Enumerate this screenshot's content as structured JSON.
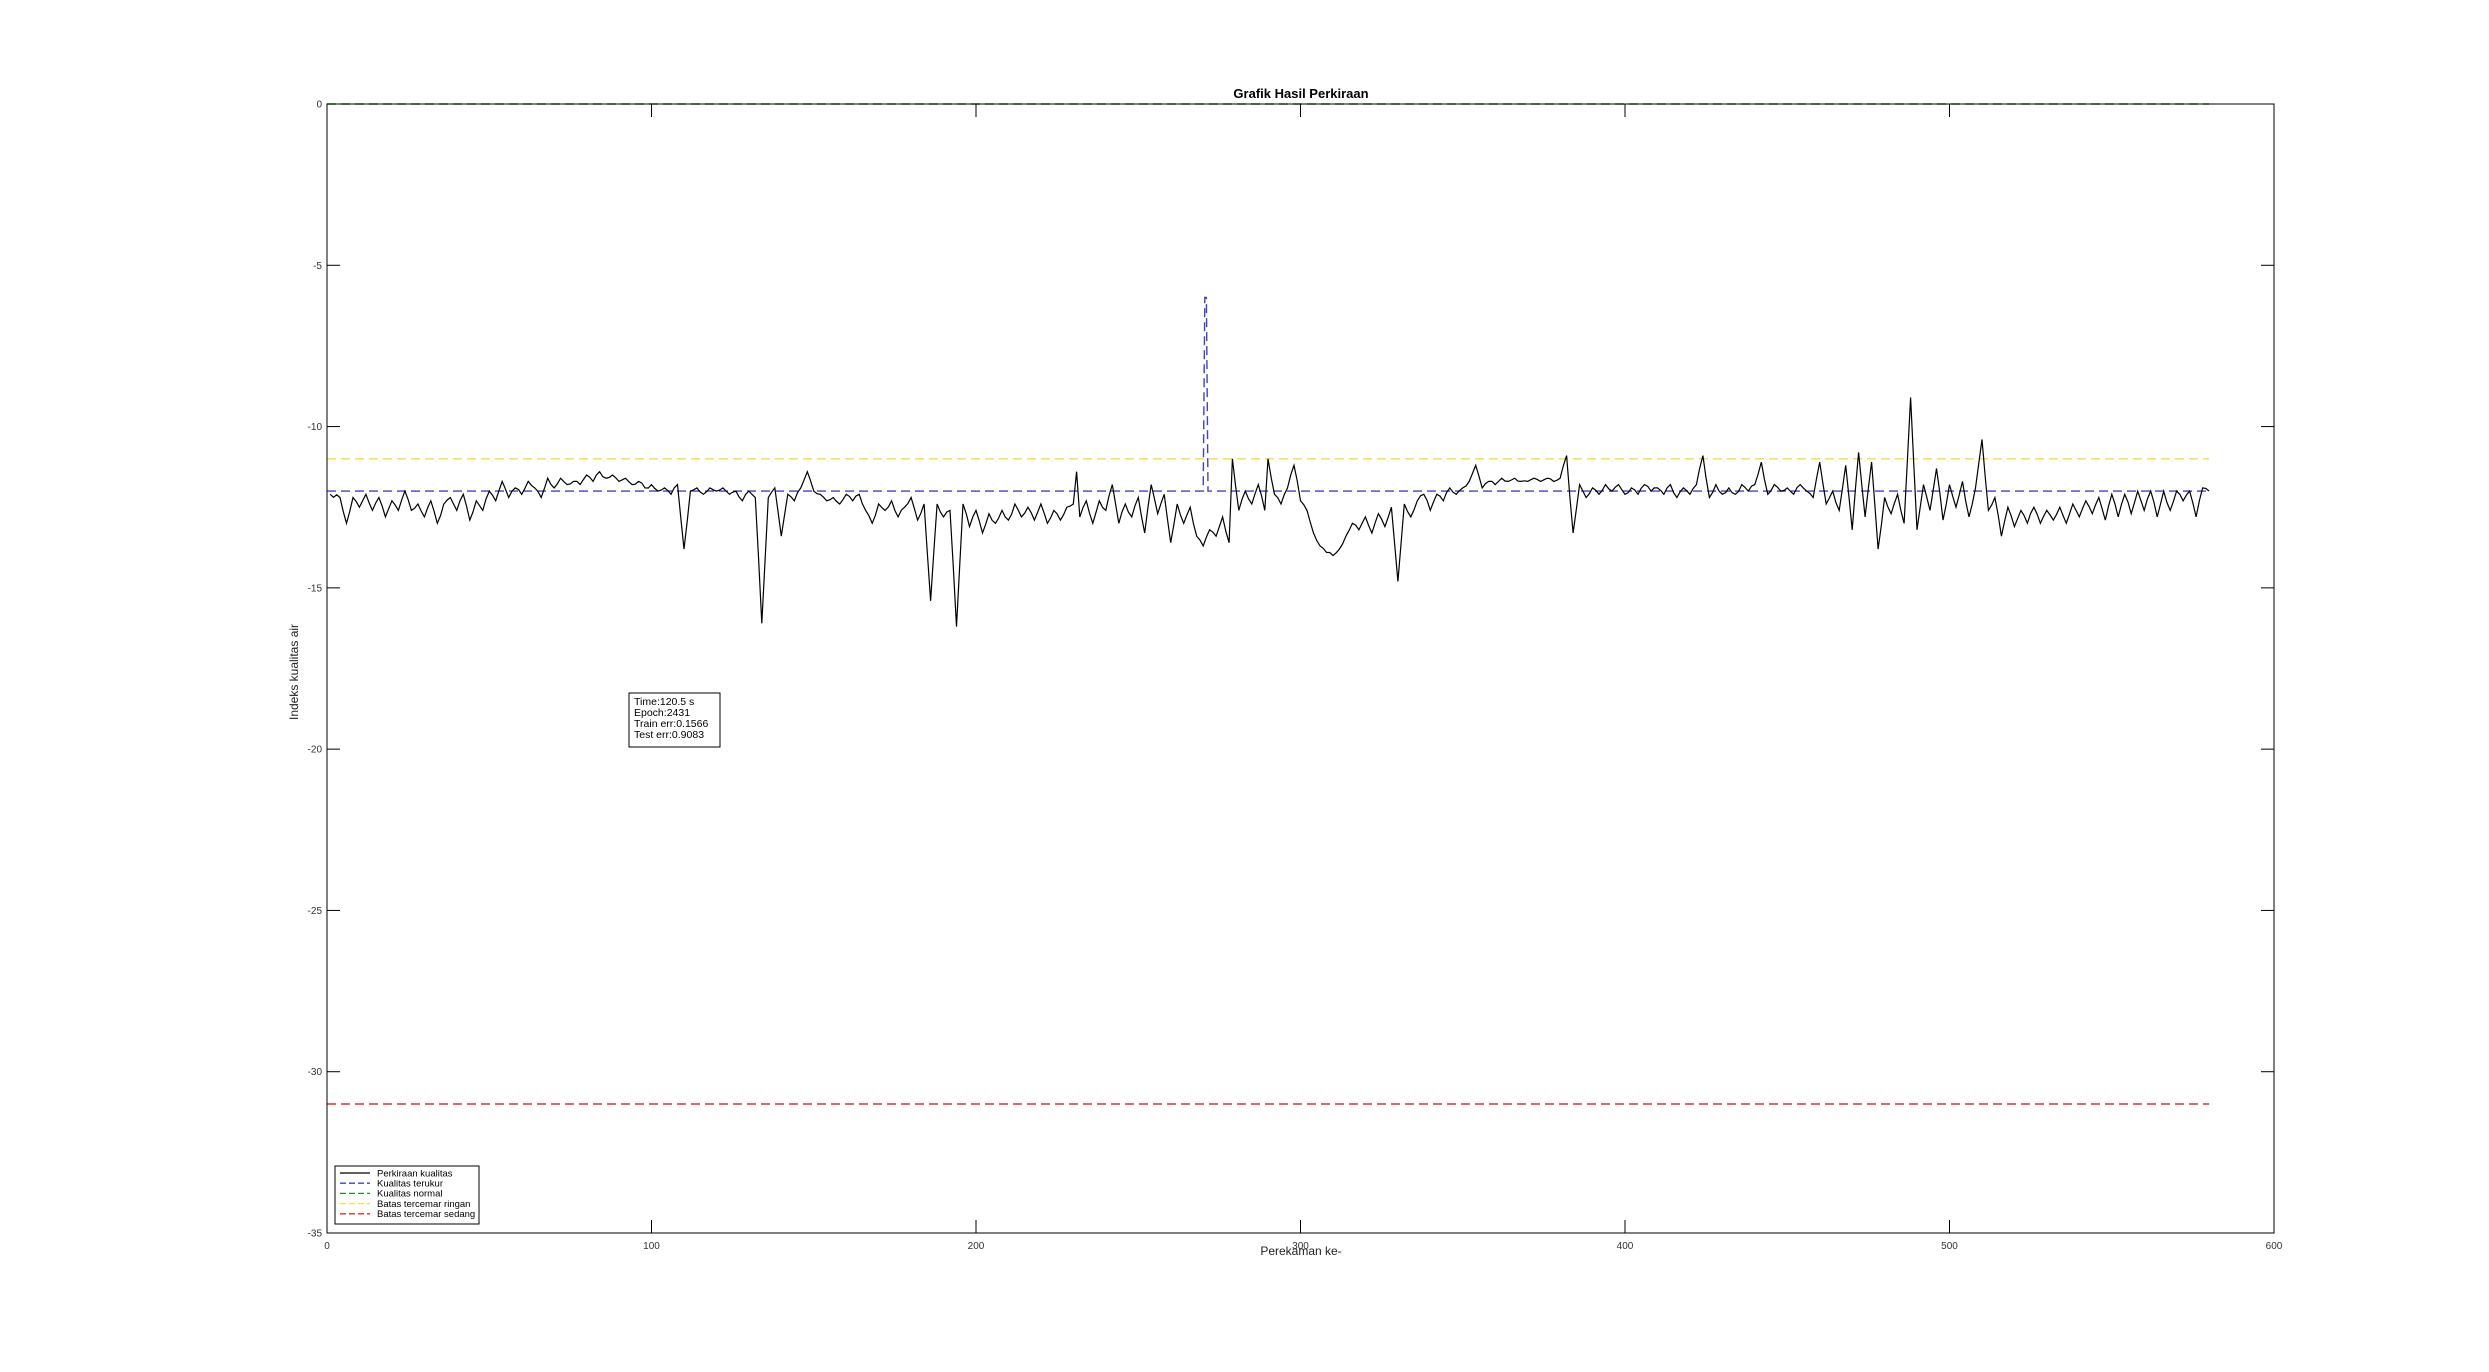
{
  "chart_data": {
    "type": "line",
    "title": "Grafik Hasil Perkiraan",
    "xlabel": "Perekaman ke-",
    "ylabel": "Indeks kualitas air",
    "xlim": [
      0,
      600
    ],
    "ylim": [
      -35,
      0
    ],
    "xticks": [
      0,
      100,
      200,
      300,
      400,
      500,
      600
    ],
    "yticks": [
      0,
      -5,
      -10,
      -15,
      -20,
      -25,
      -30,
      -35
    ],
    "grid": false,
    "legend_placement": "bottom-left",
    "annotation": [
      "Time:120.5  s",
      "Epoch:2431",
      "Train err:0.1566",
      "Test err:0.9083"
    ],
    "series": [
      {
        "name": "Perkiraan kualitas",
        "style": "solid",
        "color": "#000000",
        "anchors": [
          [
            1,
            -12.1
          ],
          [
            4,
            -12.2
          ],
          [
            6,
            -13.0
          ],
          [
            8,
            -12.2
          ],
          [
            10,
            -12.5
          ],
          [
            12,
            -12.1
          ],
          [
            14,
            -12.6
          ],
          [
            16,
            -12.2
          ],
          [
            18,
            -12.8
          ],
          [
            20,
            -12.3
          ],
          [
            22,
            -12.6
          ],
          [
            24,
            -12.0
          ],
          [
            26,
            -12.6
          ],
          [
            28,
            -12.4
          ],
          [
            30,
            -12.8
          ],
          [
            32,
            -12.3
          ],
          [
            34,
            -13.0
          ],
          [
            36,
            -12.4
          ],
          [
            38,
            -12.2
          ],
          [
            40,
            -12.6
          ],
          [
            42,
            -12.1
          ],
          [
            44,
            -12.9
          ],
          [
            46,
            -12.3
          ],
          [
            48,
            -12.6
          ],
          [
            50,
            -12.0
          ],
          [
            52,
            -12.3
          ],
          [
            54,
            -11.7
          ],
          [
            56,
            -12.2
          ],
          [
            58,
            -11.9
          ],
          [
            60,
            -12.1
          ],
          [
            62,
            -11.7
          ],
          [
            64,
            -11.9
          ],
          [
            66,
            -12.2
          ],
          [
            68,
            -11.6
          ],
          [
            70,
            -11.9
          ],
          [
            72,
            -11.6
          ],
          [
            74,
            -11.8
          ],
          [
            76,
            -11.7
          ],
          [
            78,
            -11.8
          ],
          [
            80,
            -11.5
          ],
          [
            82,
            -11.7
          ],
          [
            84,
            -11.4
          ],
          [
            86,
            -11.6
          ],
          [
            88,
            -11.5
          ],
          [
            90,
            -11.7
          ],
          [
            92,
            -11.6
          ],
          [
            94,
            -11.8
          ],
          [
            96,
            -11.7
          ],
          [
            98,
            -11.9
          ],
          [
            100,
            -11.8
          ],
          [
            102,
            -12.0
          ],
          [
            104,
            -11.9
          ],
          [
            106,
            -12.1
          ],
          [
            108,
            -11.8
          ],
          [
            110,
            -13.8
          ],
          [
            112,
            -12.0
          ],
          [
            114,
            -11.9
          ],
          [
            116,
            -12.1
          ],
          [
            118,
            -11.9
          ],
          [
            120,
            -12.0
          ],
          [
            122,
            -11.9
          ],
          [
            124,
            -12.1
          ],
          [
            126,
            -12.0
          ],
          [
            128,
            -12.3
          ],
          [
            130,
            -12.0
          ],
          [
            132,
            -12.2
          ],
          [
            134,
            -16.1
          ],
          [
            136,
            -12.2
          ],
          [
            138,
            -11.9
          ],
          [
            140,
            -13.4
          ],
          [
            142,
            -12.1
          ],
          [
            144,
            -12.3
          ],
          [
            146,
            -11.9
          ],
          [
            148,
            -11.4
          ],
          [
            150,
            -12.0
          ],
          [
            152,
            -12.1
          ],
          [
            154,
            -12.3
          ],
          [
            156,
            -12.2
          ],
          [
            158,
            -12.4
          ],
          [
            160,
            -12.1
          ],
          [
            162,
            -12.3
          ],
          [
            164,
            -12.1
          ],
          [
            166,
            -12.6
          ],
          [
            168,
            -13.0
          ],
          [
            170,
            -12.4
          ],
          [
            172,
            -12.6
          ],
          [
            174,
            -12.3
          ],
          [
            176,
            -12.8
          ],
          [
            178,
            -12.5
          ],
          [
            180,
            -12.2
          ],
          [
            182,
            -12.9
          ],
          [
            184,
            -12.4
          ],
          [
            186,
            -15.4
          ],
          [
            188,
            -12.4
          ],
          [
            190,
            -12.8
          ],
          [
            192,
            -12.6
          ],
          [
            194,
            -16.2
          ],
          [
            196,
            -12.4
          ],
          [
            198,
            -13.1
          ],
          [
            200,
            -12.6
          ],
          [
            202,
            -13.3
          ],
          [
            204,
            -12.7
          ],
          [
            206,
            -13.0
          ],
          [
            208,
            -12.6
          ],
          [
            210,
            -12.9
          ],
          [
            212,
            -12.4
          ],
          [
            214,
            -12.8
          ],
          [
            216,
            -12.5
          ],
          [
            218,
            -12.9
          ],
          [
            220,
            -12.4
          ],
          [
            222,
            -13.0
          ],
          [
            224,
            -12.6
          ],
          [
            226,
            -12.9
          ],
          [
            228,
            -12.5
          ],
          [
            230,
            -12.4
          ],
          [
            231,
            -11.4
          ],
          [
            232,
            -12.8
          ],
          [
            234,
            -12.3
          ],
          [
            236,
            -13.0
          ],
          [
            238,
            -12.3
          ],
          [
            240,
            -12.6
          ],
          [
            242,
            -11.8
          ],
          [
            244,
            -13.0
          ],
          [
            246,
            -12.4
          ],
          [
            248,
            -12.8
          ],
          [
            250,
            -12.2
          ],
          [
            252,
            -13.3
          ],
          [
            254,
            -11.8
          ],
          [
            256,
            -12.7
          ],
          [
            258,
            -12.1
          ],
          [
            260,
            -13.6
          ],
          [
            262,
            -12.4
          ],
          [
            264,
            -13.0
          ],
          [
            266,
            -12.5
          ],
          [
            268,
            -13.4
          ],
          [
            270,
            -13.7
          ],
          [
            272,
            -13.2
          ],
          [
            274,
            -13.4
          ],
          [
            276,
            -12.8
          ],
          [
            278,
            -13.6
          ],
          [
            279,
            -11.0
          ],
          [
            281,
            -12.6
          ],
          [
            283,
            -12.0
          ],
          [
            285,
            -12.4
          ],
          [
            287,
            -11.8
          ],
          [
            289,
            -12.6
          ],
          [
            290,
            -11.0
          ],
          [
            292,
            -12.1
          ],
          [
            294,
            -12.4
          ],
          [
            296,
            -11.9
          ],
          [
            298,
            -11.2
          ],
          [
            300,
            -12.3
          ],
          [
            302,
            -12.6
          ],
          [
            304,
            -13.3
          ],
          [
            306,
            -13.7
          ],
          [
            308,
            -13.9
          ],
          [
            310,
            -14.0
          ],
          [
            312,
            -13.8
          ],
          [
            314,
            -13.4
          ],
          [
            316,
            -13.0
          ],
          [
            318,
            -13.2
          ],
          [
            320,
            -12.8
          ],
          [
            322,
            -13.3
          ],
          [
            324,
            -12.7
          ],
          [
            326,
            -13.1
          ],
          [
            328,
            -12.5
          ],
          [
            330,
            -14.8
          ],
          [
            332,
            -12.4
          ],
          [
            334,
            -12.8
          ],
          [
            336,
            -12.3
          ],
          [
            338,
            -12.1
          ],
          [
            340,
            -12.6
          ],
          [
            342,
            -12.1
          ],
          [
            344,
            -12.3
          ],
          [
            346,
            -11.9
          ],
          [
            348,
            -12.1
          ],
          [
            350,
            -11.9
          ],
          [
            352,
            -11.7
          ],
          [
            354,
            -11.2
          ],
          [
            356,
            -11.9
          ],
          [
            358,
            -11.7
          ],
          [
            360,
            -11.8
          ],
          [
            362,
            -11.6
          ],
          [
            364,
            -11.7
          ],
          [
            366,
            -11.6
          ],
          [
            368,
            -11.7
          ],
          [
            370,
            -11.7
          ],
          [
            372,
            -11.6
          ],
          [
            374,
            -11.7
          ],
          [
            376,
            -11.6
          ],
          [
            378,
            -11.7
          ],
          [
            380,
            -11.6
          ],
          [
            382,
            -10.9
          ],
          [
            384,
            -13.3
          ],
          [
            386,
            -11.8
          ],
          [
            388,
            -12.2
          ],
          [
            390,
            -11.9
          ],
          [
            392,
            -12.1
          ],
          [
            394,
            -11.8
          ],
          [
            396,
            -12.0
          ],
          [
            398,
            -11.8
          ],
          [
            400,
            -12.1
          ],
          [
            402,
            -11.9
          ],
          [
            404,
            -12.1
          ],
          [
            406,
            -11.8
          ],
          [
            408,
            -12.0
          ],
          [
            410,
            -11.9
          ],
          [
            412,
            -12.1
          ],
          [
            414,
            -11.8
          ],
          [
            416,
            -12.2
          ],
          [
            418,
            -11.9
          ],
          [
            420,
            -12.1
          ],
          [
            422,
            -11.8
          ],
          [
            424,
            -10.9
          ],
          [
            426,
            -12.2
          ],
          [
            428,
            -11.8
          ],
          [
            430,
            -12.1
          ],
          [
            432,
            -11.9
          ],
          [
            434,
            -12.1
          ],
          [
            436,
            -11.8
          ],
          [
            438,
            -12.0
          ],
          [
            440,
            -11.8
          ],
          [
            442,
            -11.1
          ],
          [
            444,
            -12.1
          ],
          [
            446,
            -11.8
          ],
          [
            448,
            -12.0
          ],
          [
            450,
            -11.9
          ],
          [
            452,
            -12.1
          ],
          [
            454,
            -11.8
          ],
          [
            456,
            -12.0
          ],
          [
            458,
            -12.2
          ],
          [
            460,
            -11.1
          ],
          [
            462,
            -12.4
          ],
          [
            464,
            -12.0
          ],
          [
            466,
            -12.6
          ],
          [
            468,
            -11.2
          ],
          [
            470,
            -13.2
          ],
          [
            472,
            -10.8
          ],
          [
            474,
            -12.8
          ],
          [
            476,
            -11.1
          ],
          [
            478,
            -13.8
          ],
          [
            480,
            -12.2
          ],
          [
            482,
            -12.7
          ],
          [
            484,
            -12.1
          ],
          [
            486,
            -13.0
          ],
          [
            488,
            -9.1
          ],
          [
            490,
            -13.2
          ],
          [
            492,
            -11.8
          ],
          [
            494,
            -12.6
          ],
          [
            496,
            -11.3
          ],
          [
            498,
            -12.9
          ],
          [
            500,
            -11.8
          ],
          [
            502,
            -12.5
          ],
          [
            504,
            -11.7
          ],
          [
            506,
            -12.8
          ],
          [
            508,
            -11.9
          ],
          [
            510,
            -10.4
          ],
          [
            512,
            -12.6
          ],
          [
            514,
            -12.2
          ],
          [
            516,
            -13.4
          ],
          [
            518,
            -12.5
          ],
          [
            520,
            -13.1
          ],
          [
            522,
            -12.6
          ],
          [
            524,
            -13.0
          ],
          [
            526,
            -12.5
          ],
          [
            528,
            -13.0
          ],
          [
            530,
            -12.6
          ],
          [
            532,
            -12.9
          ],
          [
            534,
            -12.5
          ],
          [
            536,
            -13.0
          ],
          [
            538,
            -12.4
          ],
          [
            540,
            -12.8
          ],
          [
            542,
            -12.3
          ],
          [
            544,
            -12.7
          ],
          [
            546,
            -12.2
          ],
          [
            548,
            -12.9
          ],
          [
            550,
            -12.1
          ],
          [
            552,
            -12.8
          ],
          [
            554,
            -12.1
          ],
          [
            556,
            -12.7
          ],
          [
            558,
            -12.0
          ],
          [
            560,
            -12.6
          ],
          [
            562,
            -12.0
          ],
          [
            564,
            -12.8
          ],
          [
            566,
            -12.0
          ],
          [
            568,
            -12.6
          ],
          [
            570,
            -12.0
          ],
          [
            572,
            -12.3
          ],
          [
            574,
            -12.0
          ],
          [
            576,
            -12.8
          ],
          [
            578,
            -11.9
          ],
          [
            580,
            -12.0
          ]
        ]
      },
      {
        "name": "Kualitas terukur",
        "style": "dashed",
        "color": "#4040c8",
        "points": [
          [
            0,
            -12
          ],
          [
            270,
            -12
          ],
          [
            270.5,
            -6
          ],
          [
            271,
            -6
          ],
          [
            271.5,
            -12
          ],
          [
            580,
            -12
          ]
        ]
      },
      {
        "name": "Kualitas normal",
        "style": "dashed",
        "color": "#1a9b1a",
        "points": [
          [
            0,
            0
          ],
          [
            580,
            0
          ]
        ]
      },
      {
        "name": "Batas tercemar ringan",
        "style": "dashed",
        "color": "#f0e040",
        "points": [
          [
            0,
            -11
          ],
          [
            580,
            -11
          ]
        ]
      },
      {
        "name": "Batas tercemar sedang",
        "style": "dashed",
        "color": "#e03030",
        "points": [
          [
            0,
            -31
          ],
          [
            580,
            -31
          ]
        ]
      }
    ]
  }
}
